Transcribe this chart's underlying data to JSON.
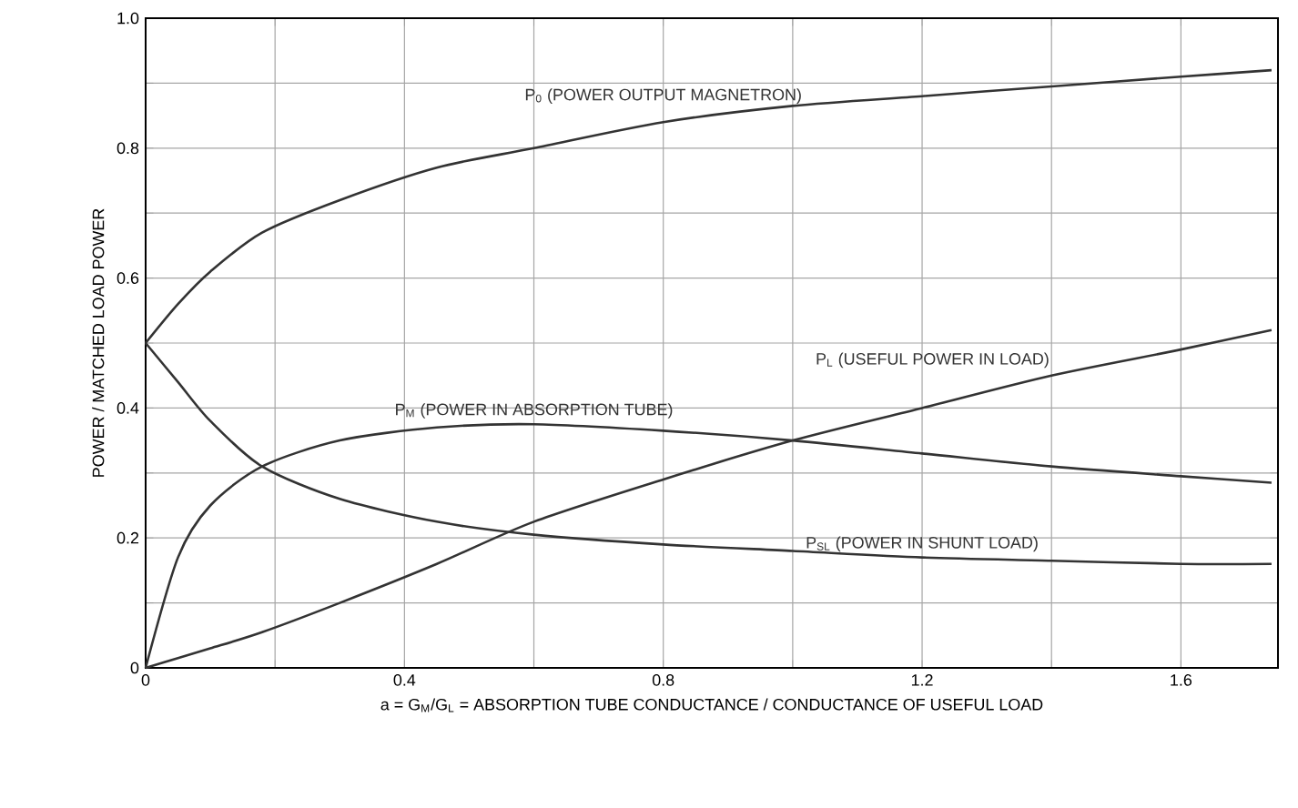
{
  "chart_data": {
    "type": "line",
    "xlabel": "a = G$_{M}$/G$_{L}$ = ABSORPTION TUBE CONDUCTANCE / CONDUCTANCE OF USEFUL LOAD",
    "ylabel": "POWER / MATCHED LOAD POWER",
    "xlim": [
      0,
      1.75
    ],
    "ylim": [
      0,
      1.0
    ],
    "xticks": [
      0,
      {
        "value": 0.2,
        "label": null
      },
      0.4,
      {
        "value": 0.6,
        "label": null
      },
      0.8,
      {
        "value": 1.0,
        "label": null
      },
      1.2,
      {
        "value": 1.4,
        "label": null
      },
      1.6
    ],
    "yticks": [
      0,
      {
        "value": 0.1,
        "label": null
      },
      0.2,
      {
        "value": 0.3,
        "label": null
      },
      0.4,
      {
        "value": 0.5,
        "label": null
      },
      0.6,
      {
        "value": 0.7,
        "label": null
      },
      0.8,
      {
        "value": 0.9,
        "label": null
      },
      {
        "value": 1.0,
        "label": "1.0"
      }
    ],
    "grid": true,
    "marker": "none",
    "line_style": "solid",
    "x": [
      0,
      0.05,
      0.1,
      0.18,
      0.3,
      0.45,
      0.6,
      0.8,
      1.0,
      1.2,
      1.4,
      1.6,
      1.74
    ],
    "series": [
      {
        "name": "P$_{0}$ (POWER OUTPUT MAGNETRON)",
        "color": "#333333",
        "values": [
          0.5,
          0.56,
          0.61,
          0.67,
          0.72,
          0.77,
          0.8,
          0.84,
          0.865,
          0.88,
          0.895,
          0.91,
          0.92
        ]
      },
      {
        "name": "P$_{M}$ (POWER IN ABSORPTION TUBE)",
        "color": "#333333",
        "values": [
          0,
          0.17,
          0.25,
          0.31,
          0.35,
          0.37,
          0.375,
          0.365,
          0.35,
          0.33,
          0.31,
          0.295,
          0.285
        ]
      },
      {
        "name": "P$_{SL}$ (POWER IN SHUNT LOAD)",
        "color": "#333333",
        "values": [
          0.5,
          0.44,
          0.38,
          0.31,
          0.26,
          0.225,
          0.205,
          0.19,
          0.18,
          0.17,
          0.165,
          0.16,
          0.16
        ]
      },
      {
        "name": "P$_{L}$ (USEFUL POWER IN LOAD)",
        "color": "#333333",
        "values": [
          0,
          0.015,
          0.03,
          0.055,
          0.1,
          0.16,
          0.225,
          0.29,
          0.35,
          0.4,
          0.45,
          0.49,
          0.52
        ]
      }
    ]
  }
}
